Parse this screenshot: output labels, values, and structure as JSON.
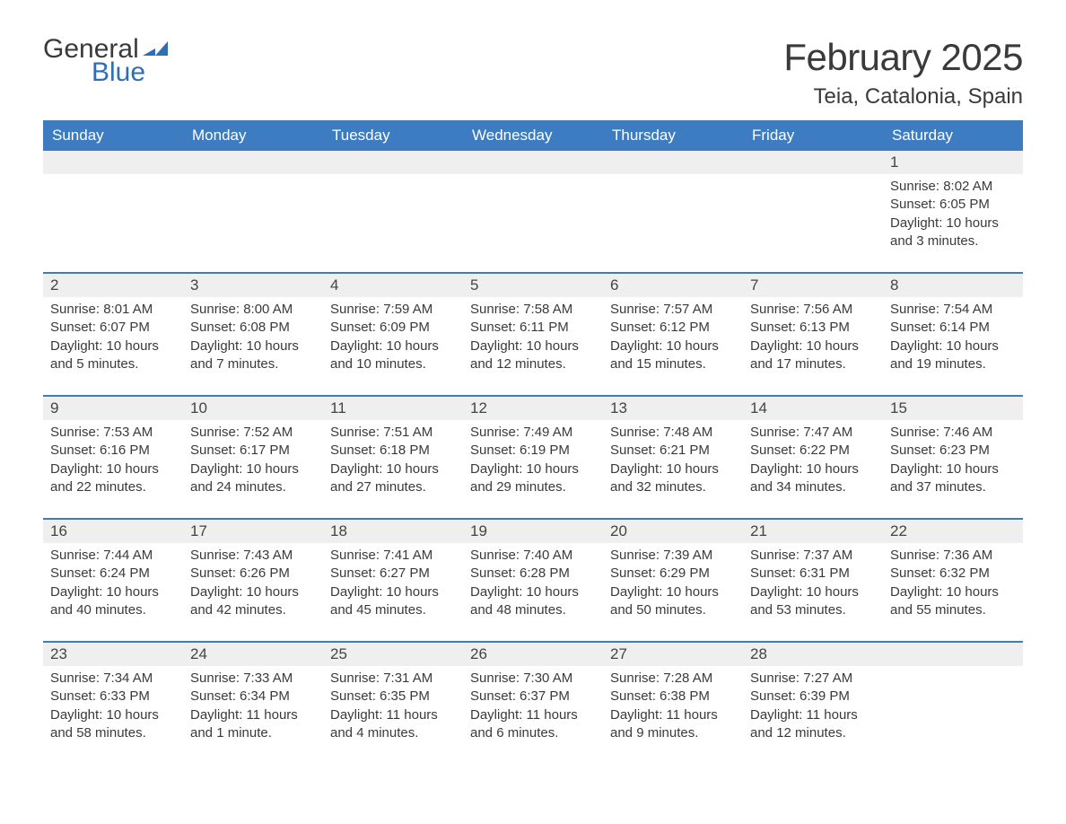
{
  "logo": {
    "line1": "General",
    "line2": "Blue"
  },
  "title": "February 2025",
  "location": "Teia, Catalonia, Spain",
  "colors": {
    "header_bg": "#3d7cc0",
    "header_text": "#ffffff",
    "row_accent": "#3d7cc0",
    "daynum_bg": "#efefef",
    "text": "#3a3a3a",
    "logo_blue": "#2f6eb5"
  },
  "days_of_week": [
    "Sunday",
    "Monday",
    "Tuesday",
    "Wednesday",
    "Thursday",
    "Friday",
    "Saturday"
  ],
  "weeks": [
    [
      null,
      null,
      null,
      null,
      null,
      null,
      {
        "n": "1",
        "sunrise": "Sunrise: 8:02 AM",
        "sunset": "Sunset: 6:05 PM",
        "dl1": "Daylight: 10 hours",
        "dl2": "and 3 minutes."
      }
    ],
    [
      {
        "n": "2",
        "sunrise": "Sunrise: 8:01 AM",
        "sunset": "Sunset: 6:07 PM",
        "dl1": "Daylight: 10 hours",
        "dl2": "and 5 minutes."
      },
      {
        "n": "3",
        "sunrise": "Sunrise: 8:00 AM",
        "sunset": "Sunset: 6:08 PM",
        "dl1": "Daylight: 10 hours",
        "dl2": "and 7 minutes."
      },
      {
        "n": "4",
        "sunrise": "Sunrise: 7:59 AM",
        "sunset": "Sunset: 6:09 PM",
        "dl1": "Daylight: 10 hours",
        "dl2": "and 10 minutes."
      },
      {
        "n": "5",
        "sunrise": "Sunrise: 7:58 AM",
        "sunset": "Sunset: 6:11 PM",
        "dl1": "Daylight: 10 hours",
        "dl2": "and 12 minutes."
      },
      {
        "n": "6",
        "sunrise": "Sunrise: 7:57 AM",
        "sunset": "Sunset: 6:12 PM",
        "dl1": "Daylight: 10 hours",
        "dl2": "and 15 minutes."
      },
      {
        "n": "7",
        "sunrise": "Sunrise: 7:56 AM",
        "sunset": "Sunset: 6:13 PM",
        "dl1": "Daylight: 10 hours",
        "dl2": "and 17 minutes."
      },
      {
        "n": "8",
        "sunrise": "Sunrise: 7:54 AM",
        "sunset": "Sunset: 6:14 PM",
        "dl1": "Daylight: 10 hours",
        "dl2": "and 19 minutes."
      }
    ],
    [
      {
        "n": "9",
        "sunrise": "Sunrise: 7:53 AM",
        "sunset": "Sunset: 6:16 PM",
        "dl1": "Daylight: 10 hours",
        "dl2": "and 22 minutes."
      },
      {
        "n": "10",
        "sunrise": "Sunrise: 7:52 AM",
        "sunset": "Sunset: 6:17 PM",
        "dl1": "Daylight: 10 hours",
        "dl2": "and 24 minutes."
      },
      {
        "n": "11",
        "sunrise": "Sunrise: 7:51 AM",
        "sunset": "Sunset: 6:18 PM",
        "dl1": "Daylight: 10 hours",
        "dl2": "and 27 minutes."
      },
      {
        "n": "12",
        "sunrise": "Sunrise: 7:49 AM",
        "sunset": "Sunset: 6:19 PM",
        "dl1": "Daylight: 10 hours",
        "dl2": "and 29 minutes."
      },
      {
        "n": "13",
        "sunrise": "Sunrise: 7:48 AM",
        "sunset": "Sunset: 6:21 PM",
        "dl1": "Daylight: 10 hours",
        "dl2": "and 32 minutes."
      },
      {
        "n": "14",
        "sunrise": "Sunrise: 7:47 AM",
        "sunset": "Sunset: 6:22 PM",
        "dl1": "Daylight: 10 hours",
        "dl2": "and 34 minutes."
      },
      {
        "n": "15",
        "sunrise": "Sunrise: 7:46 AM",
        "sunset": "Sunset: 6:23 PM",
        "dl1": "Daylight: 10 hours",
        "dl2": "and 37 minutes."
      }
    ],
    [
      {
        "n": "16",
        "sunrise": "Sunrise: 7:44 AM",
        "sunset": "Sunset: 6:24 PM",
        "dl1": "Daylight: 10 hours",
        "dl2": "and 40 minutes."
      },
      {
        "n": "17",
        "sunrise": "Sunrise: 7:43 AM",
        "sunset": "Sunset: 6:26 PM",
        "dl1": "Daylight: 10 hours",
        "dl2": "and 42 minutes."
      },
      {
        "n": "18",
        "sunrise": "Sunrise: 7:41 AM",
        "sunset": "Sunset: 6:27 PM",
        "dl1": "Daylight: 10 hours",
        "dl2": "and 45 minutes."
      },
      {
        "n": "19",
        "sunrise": "Sunrise: 7:40 AM",
        "sunset": "Sunset: 6:28 PM",
        "dl1": "Daylight: 10 hours",
        "dl2": "and 48 minutes."
      },
      {
        "n": "20",
        "sunrise": "Sunrise: 7:39 AM",
        "sunset": "Sunset: 6:29 PM",
        "dl1": "Daylight: 10 hours",
        "dl2": "and 50 minutes."
      },
      {
        "n": "21",
        "sunrise": "Sunrise: 7:37 AM",
        "sunset": "Sunset: 6:31 PM",
        "dl1": "Daylight: 10 hours",
        "dl2": "and 53 minutes."
      },
      {
        "n": "22",
        "sunrise": "Sunrise: 7:36 AM",
        "sunset": "Sunset: 6:32 PM",
        "dl1": "Daylight: 10 hours",
        "dl2": "and 55 minutes."
      }
    ],
    [
      {
        "n": "23",
        "sunrise": "Sunrise: 7:34 AM",
        "sunset": "Sunset: 6:33 PM",
        "dl1": "Daylight: 10 hours",
        "dl2": "and 58 minutes."
      },
      {
        "n": "24",
        "sunrise": "Sunrise: 7:33 AM",
        "sunset": "Sunset: 6:34 PM",
        "dl1": "Daylight: 11 hours",
        "dl2": "and 1 minute."
      },
      {
        "n": "25",
        "sunrise": "Sunrise: 7:31 AM",
        "sunset": "Sunset: 6:35 PM",
        "dl1": "Daylight: 11 hours",
        "dl2": "and 4 minutes."
      },
      {
        "n": "26",
        "sunrise": "Sunrise: 7:30 AM",
        "sunset": "Sunset: 6:37 PM",
        "dl1": "Daylight: 11 hours",
        "dl2": "and 6 minutes."
      },
      {
        "n": "27",
        "sunrise": "Sunrise: 7:28 AM",
        "sunset": "Sunset: 6:38 PM",
        "dl1": "Daylight: 11 hours",
        "dl2": "and 9 minutes."
      },
      {
        "n": "28",
        "sunrise": "Sunrise: 7:27 AM",
        "sunset": "Sunset: 6:39 PM",
        "dl1": "Daylight: 11 hours",
        "dl2": "and 12 minutes."
      },
      null
    ]
  ]
}
